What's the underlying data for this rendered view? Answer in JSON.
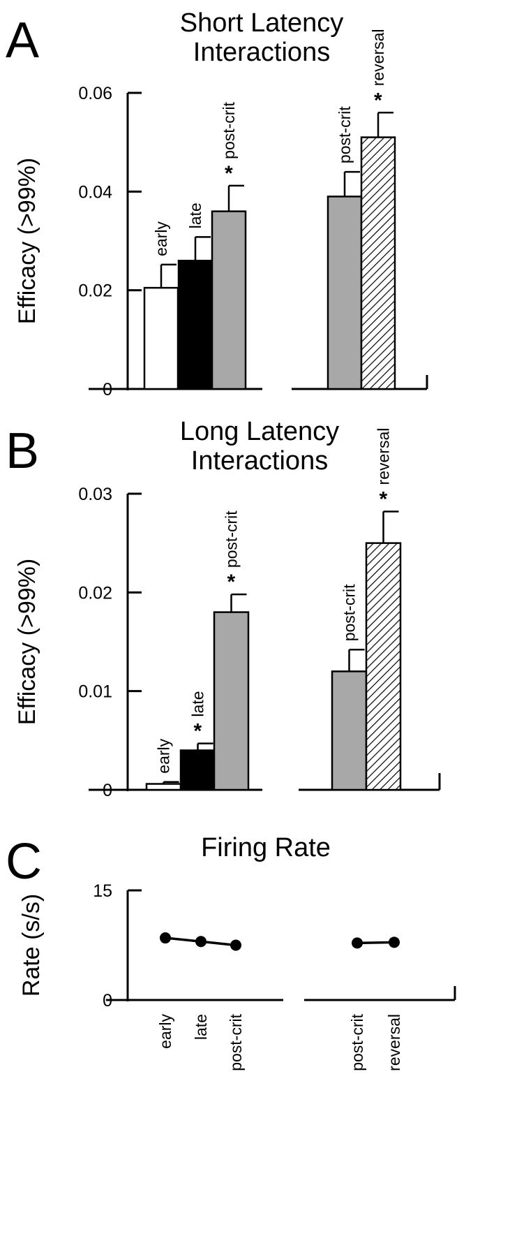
{
  "chart_data": [
    {
      "type": "bar",
      "panel": "A",
      "title": "Short Latency Interactions",
      "title_lines": [
        "Short Latency",
        "Interactions"
      ],
      "ylabel": "Efficacy (>99%)",
      "ylim": [
        0,
        0.06
      ],
      "yticks": [
        "0",
        "0.02",
        "0.04",
        "0.06"
      ],
      "groups": [
        {
          "bars": [
            {
              "label": "early",
              "value": 0.0205,
              "error": 0.0047,
              "sig": false,
              "fill": "white"
            },
            {
              "label": "late",
              "value": 0.026,
              "error": 0.0048,
              "sig": false,
              "fill": "black"
            },
            {
              "label": "post-crit",
              "value": 0.036,
              "error": 0.0052,
              "sig": true,
              "fill": "gray"
            }
          ]
        },
        {
          "bars": [
            {
              "label": "post-crit",
              "value": 0.039,
              "error": 0.005,
              "sig": false,
              "fill": "gray"
            },
            {
              "label": "reversal",
              "value": 0.051,
              "error": 0.005,
              "sig": true,
              "fill": "hatch"
            }
          ]
        }
      ]
    },
    {
      "type": "bar",
      "panel": "B",
      "title": "Long Latency Interactions",
      "title_lines": [
        "Long Latency",
        "Interactions"
      ],
      "ylabel": "Efficacy (>99%)",
      "ylim": [
        0,
        0.03
      ],
      "yticks": [
        "0",
        "0.01",
        "0.02",
        "0.03"
      ],
      "groups": [
        {
          "bars": [
            {
              "label": "early",
              "value": 0.0006,
              "error": 0.0002,
              "sig": false,
              "fill": "white"
            },
            {
              "label": "late",
              "value": 0.004,
              "error": 0.0007,
              "sig": true,
              "fill": "black"
            },
            {
              "label": "post-crit",
              "value": 0.018,
              "error": 0.0018,
              "sig": true,
              "fill": "gray"
            }
          ]
        },
        {
          "bars": [
            {
              "label": "post-crit",
              "value": 0.012,
              "error": 0.0022,
              "sig": false,
              "fill": "gray"
            },
            {
              "label": "reversal",
              "value": 0.025,
              "error": 0.0032,
              "sig": true,
              "fill": "hatch"
            }
          ]
        }
      ]
    },
    {
      "type": "line",
      "panel": "C",
      "title": "Firing Rate",
      "ylabel": "Rate (s/s)",
      "ylim": [
        0,
        15
      ],
      "yticks": [
        "0",
        "15"
      ],
      "groups": [
        {
          "points": [
            {
              "label": "early",
              "value": 8.5,
              "error": 0.6
            },
            {
              "label": "late",
              "value": 8.0,
              "error": 0.6
            },
            {
              "label": "post-crit",
              "value": 7.5,
              "error": 0.6
            }
          ]
        },
        {
          "points": [
            {
              "label": "post-crit",
              "value": 7.8,
              "error": 0.6
            },
            {
              "label": "reversal",
              "value": 7.9,
              "error": 0.6
            }
          ]
        }
      ]
    }
  ],
  "colors": {
    "white_bar": "#ffffff",
    "black_bar": "#000000",
    "gray_bar": "#a8a8a8",
    "hatch_bar": "#ffffff",
    "ink": "#000000"
  },
  "sig_marker": "*"
}
